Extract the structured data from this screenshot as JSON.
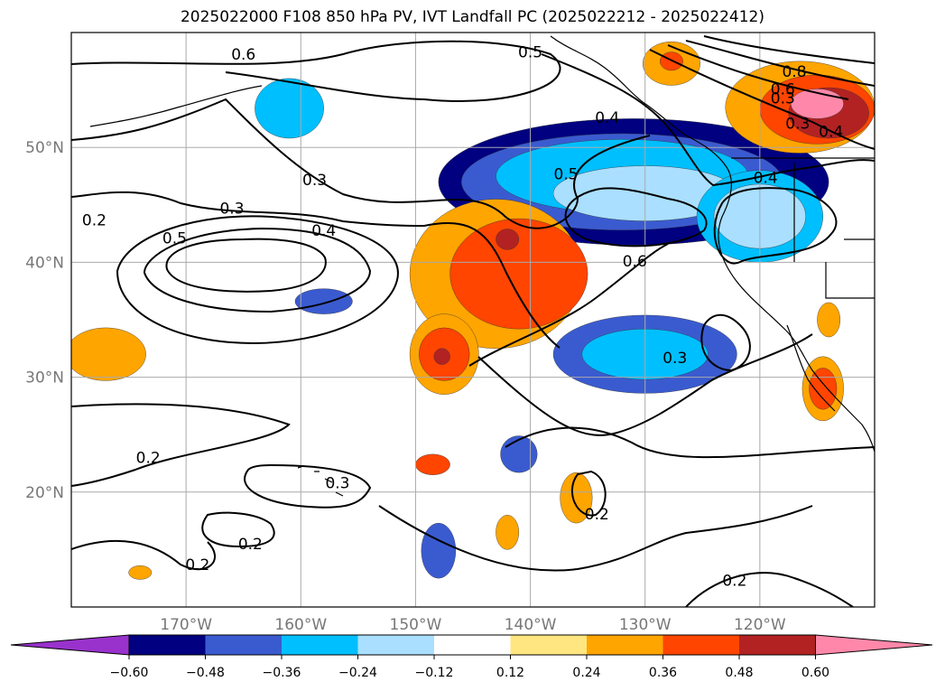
{
  "title": "2025022000 F108 850 hPa PV, IVT Landfall PC (2025022212 - 2025022412)",
  "map": {
    "type": "filled-contour-map",
    "projection": "equirectangular",
    "lon_range": [
      -180,
      -110
    ],
    "lat_range": [
      10,
      60
    ],
    "lon_ticks": [
      {
        "lon": -170,
        "label": "170°W"
      },
      {
        "lon": -160,
        "label": "160°W"
      },
      {
        "lon": -150,
        "label": "150°W"
      },
      {
        "lon": -140,
        "label": "140°W"
      },
      {
        "lon": -130,
        "label": "130°W"
      },
      {
        "lon": -120,
        "label": "120°W"
      }
    ],
    "lat_ticks": [
      {
        "lat": 50,
        "label": "50°N"
      },
      {
        "lat": 40,
        "label": "40°N"
      },
      {
        "lat": 30,
        "label": "30°N"
      },
      {
        "lat": 20,
        "label": "20°N"
      }
    ],
    "grid": true,
    "contour_labels": [
      {
        "text": "0.6",
        "lon": -165,
        "lat": 58.1
      },
      {
        "text": "0.5",
        "lon": -140,
        "lat": 58.3
      },
      {
        "text": "0.8",
        "lon": -117,
        "lat": 56.6
      },
      {
        "text": "0.6",
        "lon": -118,
        "lat": 55.1
      },
      {
        "text": "0.3",
        "lon": -118,
        "lat": 54.3
      },
      {
        "text": "0.3",
        "lon": -116.7,
        "lat": 52.1
      },
      {
        "text": "0.4",
        "lon": -113.8,
        "lat": 51.4
      },
      {
        "text": "0.4",
        "lon": -133.3,
        "lat": 52.6
      },
      {
        "text": "0.5",
        "lon": -136.9,
        "lat": 47.7
      },
      {
        "text": "0.4",
        "lon": -119.5,
        "lat": 47.4
      },
      {
        "text": "0.6",
        "lon": -130.9,
        "lat": 40.1
      },
      {
        "text": "0.3",
        "lon": -158.8,
        "lat": 47.2
      },
      {
        "text": "0.3",
        "lon": -166,
        "lat": 44.7
      },
      {
        "text": "0.2",
        "lon": -178,
        "lat": 43.7
      },
      {
        "text": "0.5",
        "lon": -171,
        "lat": 42.1
      },
      {
        "text": "0.4",
        "lon": -158,
        "lat": 42.8
      },
      {
        "text": "0.3",
        "lon": -127.4,
        "lat": 31.7
      },
      {
        "text": "0.2",
        "lon": -173.3,
        "lat": 23
      },
      {
        "text": "0.3",
        "lon": -156.8,
        "lat": 20.8
      },
      {
        "text": "0.2",
        "lon": -134.2,
        "lat": 18.1
      },
      {
        "text": "0.2",
        "lon": -164.4,
        "lat": 15.5
      },
      {
        "text": "0.2",
        "lon": -169,
        "lat": 13.7
      },
      {
        "text": "0.2",
        "lon": -122.2,
        "lat": 12.3
      }
    ],
    "pc_anomaly_regions": [
      {
        "bin": 1,
        "lon": -131,
        "lat": 47,
        "rx": 17,
        "ry": 5.5
      },
      {
        "bin": 2,
        "lon": -132,
        "lat": 47,
        "rx": 14,
        "ry": 4.2
      },
      {
        "bin": 3,
        "lon": -132,
        "lat": 47.5,
        "rx": 11,
        "ry": 3.2
      },
      {
        "bin": 4,
        "lon": -130,
        "lat": 46,
        "rx": 8,
        "ry": 2.4
      },
      {
        "bin": 3,
        "lon": -120,
        "lat": 44,
        "rx": 5.5,
        "ry": 4
      },
      {
        "bin": 4,
        "lon": -120,
        "lat": 44,
        "rx": 4,
        "ry": 2.8
      },
      {
        "bin": 2,
        "lon": -130,
        "lat": 32,
        "rx": 8,
        "ry": 3.4
      },
      {
        "bin": 3,
        "lon": -130,
        "lat": 32,
        "rx": 5.5,
        "ry": 2.2
      },
      {
        "bin": 3,
        "lon": -161,
        "lat": 53.4,
        "rx": 3,
        "ry": 2.6
      },
      {
        "bin": 2,
        "lon": -158,
        "lat": 36.6,
        "rx": 2.5,
        "ry": 1.1
      },
      {
        "bin": 2,
        "lon": -141,
        "lat": 23.3,
        "rx": 1.6,
        "ry": 1.6
      },
      {
        "bin": 2,
        "lon": -148,
        "lat": 14.9,
        "rx": 1.5,
        "ry": 2.4
      },
      {
        "bin": 7,
        "lon": -143,
        "lat": 39,
        "rx": 7.5,
        "ry": 6.5
      },
      {
        "bin": 8,
        "lon": -141,
        "lat": 39,
        "rx": 6,
        "ry": 4.8
      },
      {
        "bin": 7,
        "lon": -147.5,
        "lat": 32,
        "rx": 3,
        "ry": 3.5
      },
      {
        "bin": 8,
        "lon": -147.5,
        "lat": 32,
        "rx": 2.2,
        "ry": 2.3
      },
      {
        "bin": 9,
        "lon": -147.7,
        "lat": 31.8,
        "rx": 0.7,
        "ry": 0.7
      },
      {
        "bin": 9,
        "lon": -142,
        "lat": 42,
        "rx": 1,
        "ry": 0.9
      },
      {
        "bin": 7,
        "lon": -116.5,
        "lat": 53.5,
        "rx": 6.5,
        "ry": 4
      },
      {
        "bin": 8,
        "lon": -115,
        "lat": 53.3,
        "rx": 5,
        "ry": 3
      },
      {
        "bin": 9,
        "lon": -114,
        "lat": 53,
        "rx": 3.5,
        "ry": 2.2
      },
      {
        "bin": 10,
        "lon": -115,
        "lat": 53.8,
        "rx": 2.3,
        "ry": 1.3
      },
      {
        "bin": 7,
        "lon": -127.7,
        "lat": 57.3,
        "rx": 2.5,
        "ry": 1.9
      },
      {
        "bin": 8,
        "lon": -127.7,
        "lat": 57.5,
        "rx": 1,
        "ry": 0.8
      },
      {
        "bin": 7,
        "lon": -114.5,
        "lat": 29,
        "rx": 1.8,
        "ry": 2.8
      },
      {
        "bin": 8,
        "lon": -114.5,
        "lat": 29,
        "rx": 1.2,
        "ry": 1.8
      },
      {
        "bin": 7,
        "lon": -177,
        "lat": 32,
        "rx": 3.5,
        "ry": 2.3
      },
      {
        "bin": 8,
        "lon": -148.5,
        "lat": 22.4,
        "rx": 1.5,
        "ry": 0.9
      },
      {
        "bin": 7,
        "lon": -136,
        "lat": 19.5,
        "rx": 1.4,
        "ry": 2.2
      },
      {
        "bin": 7,
        "lon": -142,
        "lat": 16.5,
        "rx": 1,
        "ry": 1.5
      },
      {
        "bin": 7,
        "lon": -114,
        "lat": 35,
        "rx": 1,
        "ry": 1.5
      },
      {
        "bin": 7,
        "lon": -174,
        "lat": 13,
        "rx": 1,
        "ry": 0.6
      }
    ]
  },
  "colorbar": {
    "ticks": [
      {
        "value": -0.6,
        "label": "−0.60"
      },
      {
        "value": -0.48,
        "label": "−0.48"
      },
      {
        "value": -0.36,
        "label": "−0.36"
      },
      {
        "value": -0.24,
        "label": "−0.24"
      },
      {
        "value": -0.12,
        "label": "−0.12"
      },
      {
        "value": 0.12,
        "label": "0.12"
      },
      {
        "value": 0.24,
        "label": "0.24"
      },
      {
        "value": 0.36,
        "label": "0.36"
      },
      {
        "value": 0.48,
        "label": "0.48"
      },
      {
        "value": 0.6,
        "label": "0.60"
      }
    ],
    "bins": [
      {
        "range": "< −0.60",
        "color": "#9932cc"
      },
      {
        "range": "−0.60 to −0.48",
        "color": "#000080"
      },
      {
        "range": "−0.48 to −0.36",
        "color": "#3a5bd0"
      },
      {
        "range": "−0.36 to −0.24",
        "color": "#00bfff"
      },
      {
        "range": "−0.24 to −0.12",
        "color": "#aadfff"
      },
      {
        "range": "−0.12 to 0.12",
        "color": "#ffffff"
      },
      {
        "range": "0.12 to 0.24",
        "color": "#ffe680"
      },
      {
        "range": "0.24 to 0.36",
        "color": "#ffa500"
      },
      {
        "range": "0.36 to 0.48",
        "color": "#ff4500"
      },
      {
        "range": "0.48 to 0.60",
        "color": "#b22222"
      },
      {
        "range": "> 0.60",
        "color": "#ff88aa"
      }
    ]
  }
}
